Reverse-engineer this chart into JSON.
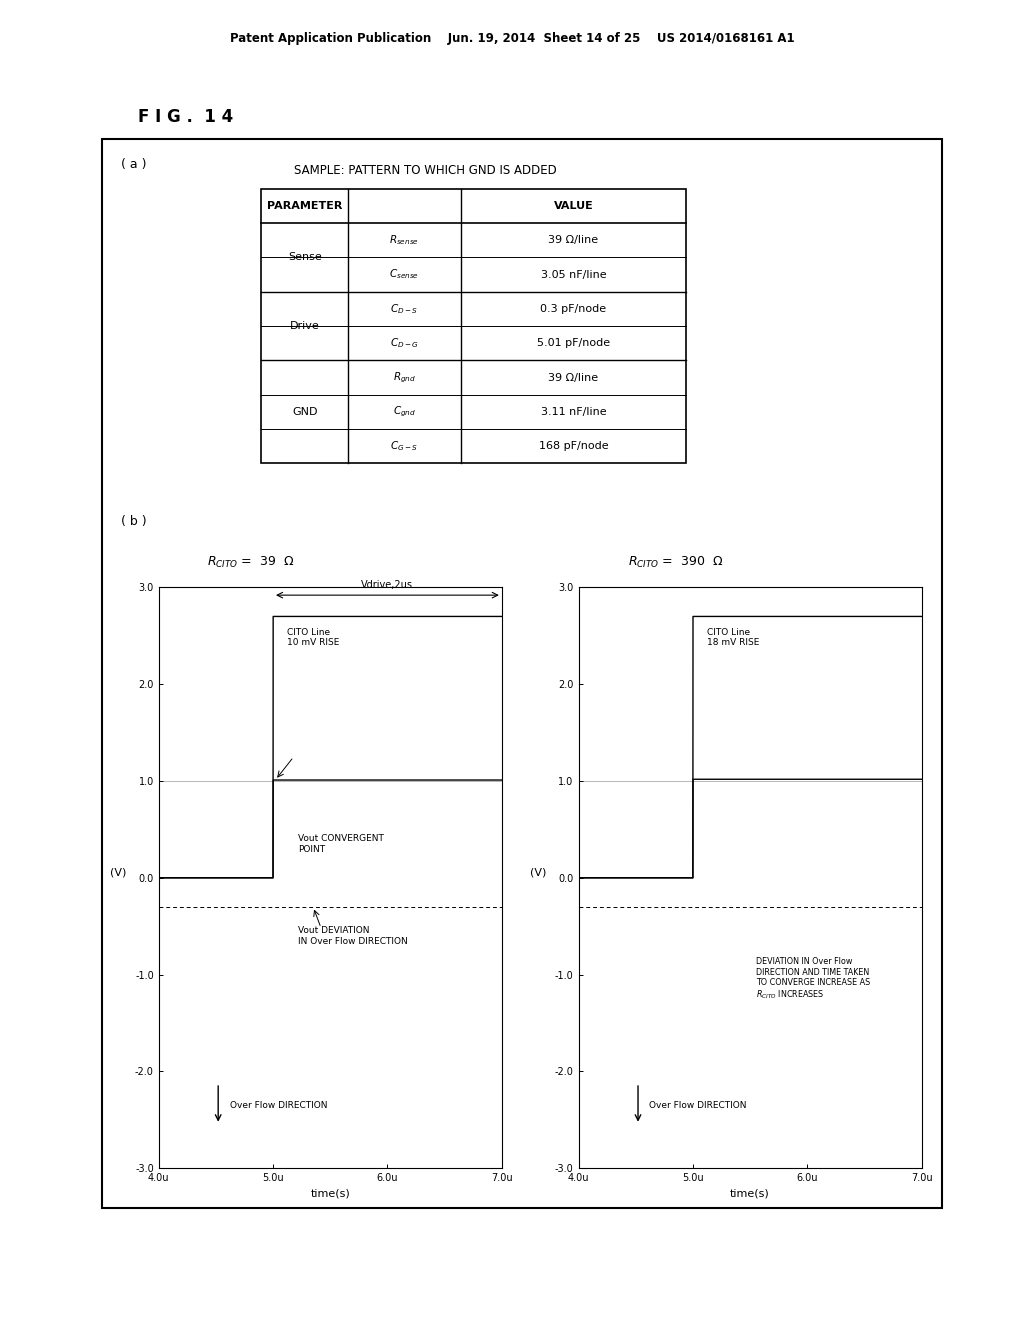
{
  "header_text": "Patent Application Publication    Jun. 19, 2014  Sheet 14 of 25    US 2014/0168161 A1",
  "fig_label": "F I G .  1 4",
  "part_a_label": "( a )",
  "part_b_label": "( b )",
  "table_title": "SAMPLE: PATTERN TO WHICH GND IS ADDED",
  "table_col1_header": "PARAMETER",
  "table_col3_header": "VALUE",
  "table_group_labels": [
    "Sense",
    "Drive",
    "GND"
  ],
  "table_group_spans": [
    2,
    2,
    3
  ],
  "table_param_names": [
    "R_sense",
    "C_sense",
    "C_D-S",
    "C_D-G",
    "R_gnd",
    "C_gnd",
    "C_G-S"
  ],
  "table_param_display": [
    "Rₛₑₙₛₑ",
    "Cₛₑₙₛₑ",
    "C₇₋ₛ",
    "C₇₋₆",
    "Rᵍₙₓ",
    "Cᵍₙₓ",
    "C₆₋ₛ"
  ],
  "table_values": [
    "39 Ω/line",
    "3.05 nF/line",
    "0.3 pF/node",
    "5.01 pF/node",
    "39 Ω/line",
    "3.11 nF/line",
    "168 pF/node"
  ],
  "left_rcito": "Rₜᴵᵀₒ =  39  Ω",
  "right_rcito": "Rₜᴵᵀₒ =  390  Ω",
  "vdrive_label": "Vdrive,2us",
  "xlabel": "time(s)",
  "ylabel": "(V)",
  "ylim": [
    -3.0,
    3.0
  ],
  "xlim": [
    4.0,
    7.0
  ],
  "ytick_labels": [
    "-3.0",
    "-2.0",
    "-1.0",
    "0.0",
    "1.0",
    "2.0",
    "3.0"
  ],
  "xtick_labels": [
    "4.0u",
    "5.0u",
    "6.0u",
    "7.0u"
  ],
  "bg_color": "#ffffff"
}
